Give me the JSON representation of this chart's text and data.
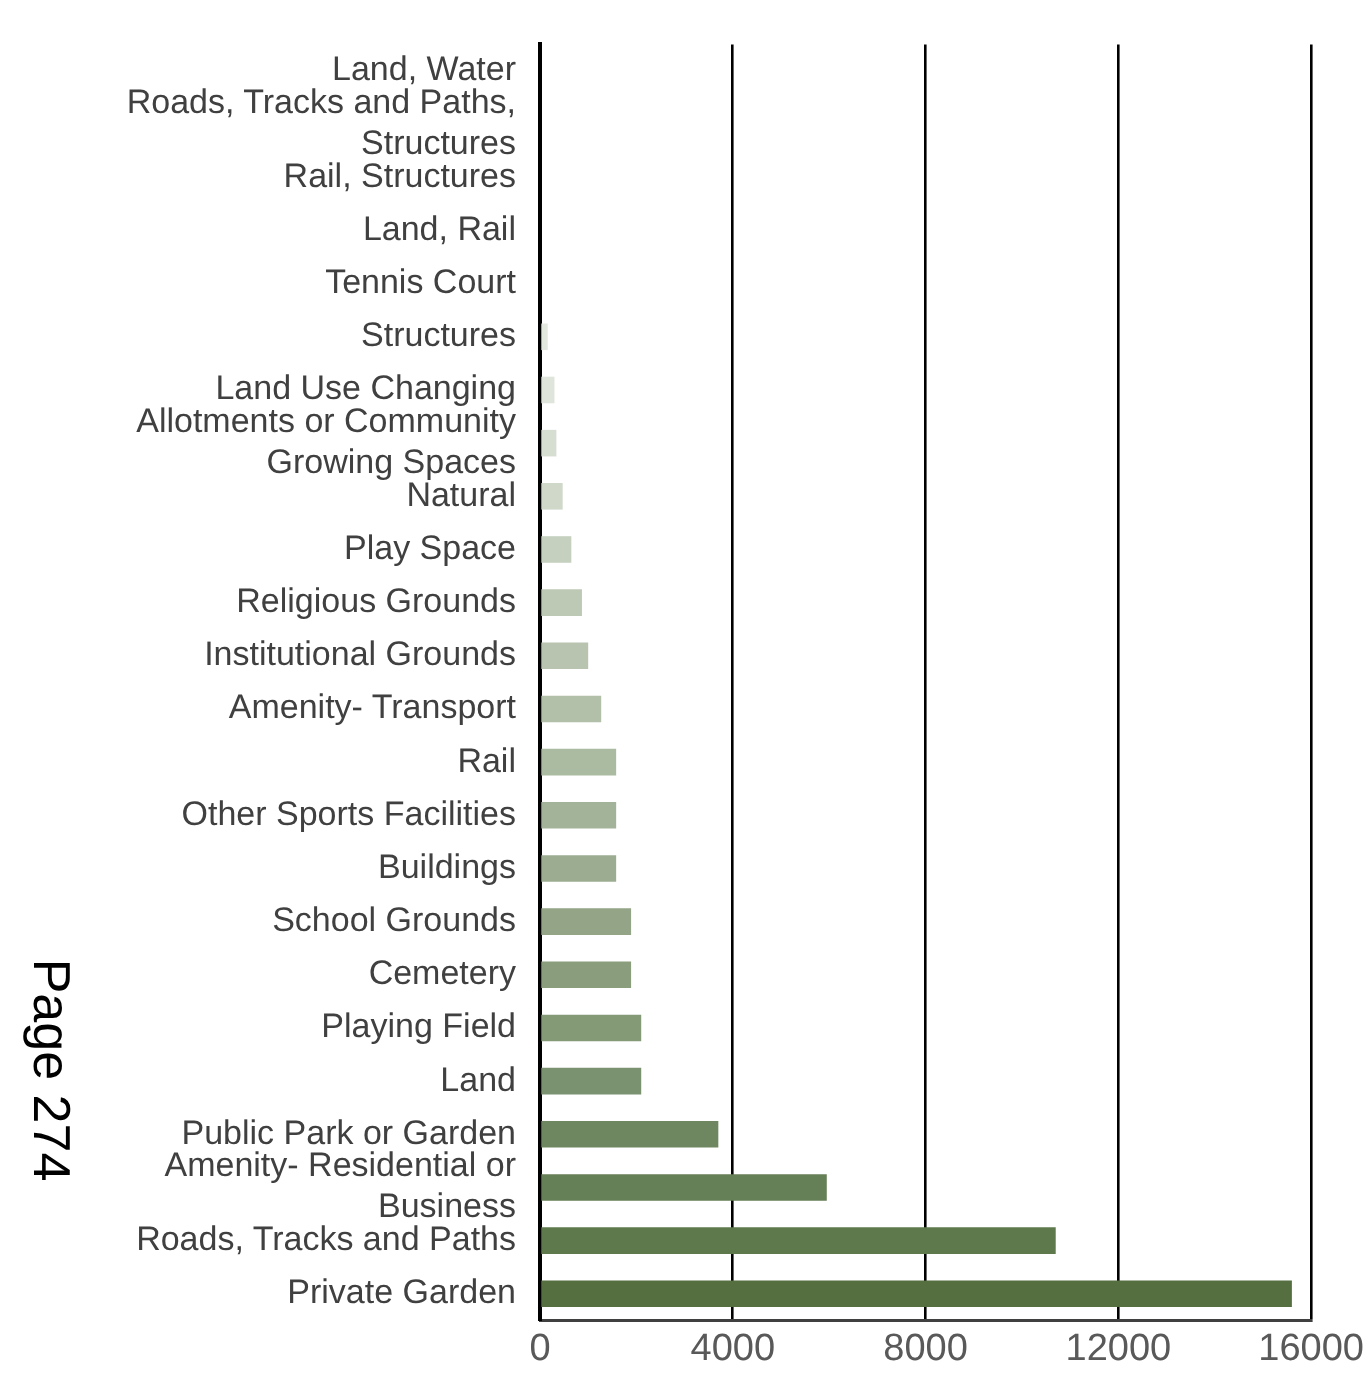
{
  "chart_data": {
    "type": "bar",
    "orientation": "horizontal",
    "categories": [
      "Land, Water",
      "Roads, Tracks and Paths, Structures",
      "Rail, Structures",
      "Land, Rail",
      "Tennis Court",
      "Structures",
      "Land Use Changing",
      "Allotments or Community Growing Spaces",
      "Natural",
      "Play Space",
      "Religious Grounds",
      "Institutional Grounds",
      "Amenity- Transport",
      "Rail",
      "Other Sports Facilities",
      "Buildings",
      "School Grounds",
      "Cemetery",
      "Playing Field",
      "Land",
      "Public Park or Garden",
      "Amenity- Residential or Business",
      "Roads, Tracks and Paths",
      "Private Garden"
    ],
    "values": [
      0,
      0,
      0,
      0,
      0,
      160,
      300,
      340,
      470,
      650,
      870,
      1000,
      1270,
      1580,
      1580,
      1580,
      1890,
      1890,
      2100,
      2100,
      3700,
      5950,
      10700,
      15600
    ],
    "colors": [
      "#eef1ec",
      "#ecefea",
      "#eaeee7",
      "#e8ece5",
      "#e6eae2",
      "#e3e8df",
      "#dfe5db",
      "#d6ddd1",
      "#d0d8ca",
      "#c5d0bf",
      "#bdc8b5",
      "#b8c4b0",
      "#b2bfa9",
      "#aabba2",
      "#a3b39a",
      "#9bac91",
      "#93a586",
      "#8a9e7d",
      "#849a77",
      "#7b9270",
      "#6e8760",
      "#657f56",
      "#5e7a4c",
      "#556f41"
    ],
    "xlim": [
      0,
      16000
    ],
    "xticks": [
      0,
      4000,
      8000,
      12000,
      16000
    ],
    "grid": "x",
    "annotations": [
      "Page 274"
    ]
  }
}
